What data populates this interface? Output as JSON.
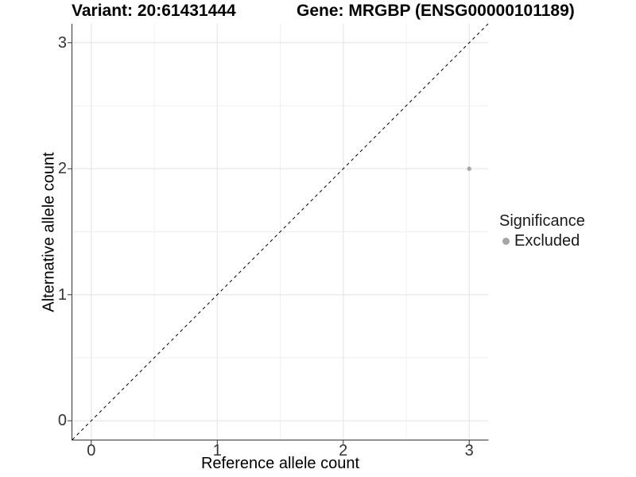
{
  "chart_data": {
    "type": "scatter",
    "title_left": "Variant: 20:61431444",
    "title_right": "Gene: MRGBP (ENSG00000101189)",
    "xlabel": "Reference allele count",
    "ylabel": "Alternative allele count",
    "xlim": [
      -0.15,
      3.15
    ],
    "ylim": [
      -0.15,
      3.15
    ],
    "x_major_ticks": [
      0,
      1,
      2,
      3
    ],
    "y_major_ticks": [
      0,
      1,
      2,
      3
    ],
    "x_minor_gridlines": [
      0.5,
      1.5,
      2.5
    ],
    "y_minor_gridlines": [
      0.5,
      1.5,
      2.5
    ],
    "grid": "major+minor",
    "reference_line": {
      "slope": 1,
      "intercept": 0,
      "style": "dashed",
      "color": "#000000"
    },
    "series": [
      {
        "name": "Excluded",
        "color": "#a6a6a6",
        "points": [
          {
            "x": 3,
            "y": 2
          }
        ]
      }
    ],
    "legend": {
      "title": "Significance",
      "position": "right",
      "items": [
        {
          "label": "Excluded",
          "color": "#a6a6a6"
        }
      ]
    }
  }
}
